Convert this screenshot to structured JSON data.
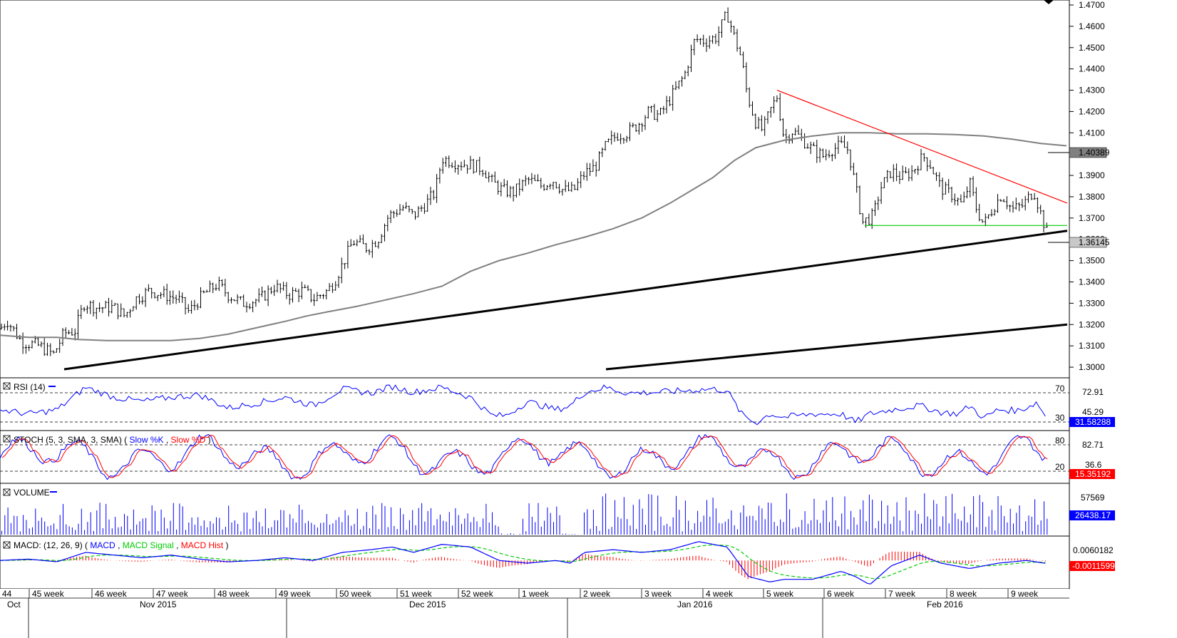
{
  "chart_data": [
    {
      "type": "candlestick",
      "panel": "price",
      "ylim": [
        1.295,
        1.471
      ],
      "y_ticks": [
        "1.4700",
        "1.4600",
        "1.4500",
        "1.4400",
        "1.4300",
        "1.4200",
        "1.4100",
        "1.4000",
        "1.3900",
        "1.3800",
        "1.3700",
        "1.3600",
        "1.3500",
        "1.3400",
        "1.3300",
        "1.3200",
        "1.3100",
        "1.3000"
      ],
      "bars": 344,
      "last_value": "1.36145",
      "ma_value": "1.40389",
      "ma_path": [
        [
          0,
          1.315
        ],
        [
          40,
          1.314
        ],
        [
          80,
          1.314
        ],
        [
          110,
          1.313
        ],
        [
          150,
          1.3125
        ],
        [
          190,
          1.3125
        ],
        [
          240,
          1.3125
        ],
        [
          280,
          1.3135
        ],
        [
          320,
          1.3155
        ],
        [
          360,
          1.3185
        ],
        [
          400,
          1.3215
        ],
        [
          430,
          1.324
        ],
        [
          460,
          1.326
        ],
        [
          500,
          1.3285
        ],
        [
          540,
          1.3315
        ],
        [
          580,
          1.3345
        ],
        [
          620,
          1.338
        ],
        [
          660,
          1.345
        ],
        [
          700,
          1.35
        ],
        [
          740,
          1.3535
        ],
        [
          780,
          1.3575
        ],
        [
          820,
          1.361
        ],
        [
          860,
          1.365
        ],
        [
          900,
          1.37
        ],
        [
          940,
          1.377
        ],
        [
          970,
          1.383
        ],
        [
          1000,
          1.389
        ],
        [
          1030,
          1.397
        ],
        [
          1060,
          1.403
        ],
        [
          1100,
          1.4065
        ],
        [
          1140,
          1.4085
        ],
        [
          1180,
          1.41
        ],
        [
          1220,
          1.41
        ],
        [
          1260,
          1.4095
        ],
        [
          1300,
          1.4095
        ],
        [
          1340,
          1.4092
        ],
        [
          1380,
          1.4085
        ],
        [
          1420,
          1.407
        ],
        [
          1460,
          1.405
        ],
        [
          1496,
          1.4039
        ]
      ],
      "lines": {
        "red_trend": [
          [
            1090,
            1.43
          ],
          [
            1497,
            1.377
          ]
        ],
        "green_support": [
          [
            1213,
            1.3665
          ],
          [
            1497,
            1.3665
          ]
        ],
        "black_support_1": [
          [
            90,
            1.299
          ],
          [
            1497,
            1.364
          ]
        ],
        "black_support_2": [
          [
            850,
            1.299
          ],
          [
            1497,
            1.32
          ]
        ]
      },
      "anchors": [
        [
          0,
          1.318
        ],
        [
          10,
          1.322
        ],
        [
          30,
          1.312
        ],
        [
          55,
          1.31
        ],
        [
          75,
          1.306
        ],
        [
          90,
          1.316
        ],
        [
          105,
          1.317
        ],
        [
          118,
          1.33
        ],
        [
          135,
          1.328
        ],
        [
          160,
          1.328
        ],
        [
          175,
          1.324
        ],
        [
          190,
          1.332
        ],
        [
          210,
          1.336
        ],
        [
          230,
          1.334
        ],
        [
          250,
          1.332
        ],
        [
          265,
          1.326
        ],
        [
          285,
          1.334
        ],
        [
          305,
          1.339
        ],
        [
          320,
          1.334
        ],
        [
          340,
          1.33
        ],
        [
          365,
          1.332
        ],
        [
          385,
          1.338
        ],
        [
          405,
          1.334
        ],
        [
          425,
          1.336
        ],
        [
          440,
          1.332
        ],
        [
          460,
          1.336
        ],
        [
          470,
          1.341
        ],
        [
          480,
          1.348
        ],
        [
          495,
          1.359
        ],
        [
          515,
          1.356
        ],
        [
          530,
          1.36
        ],
        [
          545,
          1.371
        ],
        [
          565,
          1.375
        ],
        [
          580,
          1.371
        ],
        [
          598,
          1.377
        ],
        [
          610,
          1.382
        ],
        [
          620,
          1.398
        ],
        [
          640,
          1.396
        ],
        [
          660,
          1.395
        ],
        [
          678,
          1.393
        ],
        [
          690,
          1.387
        ],
        [
          705,
          1.383
        ],
        [
          720,
          1.382
        ],
        [
          740,
          1.388
        ],
        [
          760,
          1.385
        ],
        [
          775,
          1.388
        ],
        [
          790,
          1.383
        ],
        [
          805,
          1.383
        ],
        [
          820,
          1.391
        ],
        [
          835,
          1.394
        ],
        [
          850,
          1.404
        ],
        [
          865,
          1.409
        ],
        [
          880,
          1.41
        ],
        [
          895,
          1.414
        ],
        [
          910,
          1.42
        ],
        [
          925,
          1.418
        ],
        [
          940,
          1.426
        ],
        [
          960,
          1.437
        ],
        [
          975,
          1.454
        ],
        [
          990,
          1.453
        ],
        [
          1005,
          1.455
        ],
        [
          1020,
          1.466
        ],
        [
          1030,
          1.455
        ],
        [
          1040,
          1.445
        ],
        [
          1048,
          1.428
        ],
        [
          1060,
          1.415
        ],
        [
          1070,
          1.411
        ],
        [
          1080,
          1.42
        ],
        [
          1090,
          1.427
        ],
        [
          1100,
          1.407
        ],
        [
          1112,
          1.411
        ],
        [
          1125,
          1.407
        ],
        [
          1140,
          1.402
        ],
        [
          1155,
          1.399
        ],
        [
          1165,
          1.402
        ],
        [
          1180,
          1.404
        ],
        [
          1190,
          1.402
        ],
        [
          1198,
          1.388
        ],
        [
          1210,
          1.368
        ],
        [
          1225,
          1.371
        ],
        [
          1235,
          1.384
        ],
        [
          1250,
          1.392
        ],
        [
          1265,
          1.389
        ],
        [
          1280,
          1.392
        ],
        [
          1295,
          1.399
        ],
        [
          1305,
          1.395
        ],
        [
          1320,
          1.384
        ],
        [
          1335,
          1.381
        ],
        [
          1350,
          1.376
        ],
        [
          1360,
          1.387
        ],
        [
          1370,
          1.374
        ],
        [
          1380,
          1.367
        ],
        [
          1395,
          1.376
        ],
        [
          1405,
          1.381
        ],
        [
          1420,
          1.374
        ],
        [
          1435,
          1.376
        ],
        [
          1450,
          1.383
        ],
        [
          1460,
          1.372
        ],
        [
          1470,
          1.3615
        ]
      ]
    },
    {
      "type": "line",
      "panel": "rsi",
      "title": "RSI (14)",
      "ylim": [
        20,
        80
      ],
      "levels": [
        70,
        30
      ],
      "level_labels": [
        "70",
        "30"
      ],
      "scale_labels": [
        "72.91",
        "45.29"
      ],
      "last_value": "31.58288",
      "series": [
        {
          "name": "RSI",
          "color": "#0000ff",
          "anchors": [
            [
              0,
              45
            ],
            [
              40,
              40
            ],
            [
              80,
              45
            ],
            [
              120,
              72
            ],
            [
              160,
              60
            ],
            [
              200,
              55
            ],
            [
              240,
              60
            ],
            [
              280,
              63
            ],
            [
              320,
              47
            ],
            [
              360,
              53
            ],
            [
              400,
              60
            ],
            [
              440,
              50
            ],
            [
              480,
              70
            ],
            [
              520,
              65
            ],
            [
              550,
              73
            ],
            [
              580,
              66
            ],
            [
              620,
              72
            ],
            [
              660,
              60
            ],
            [
              690,
              38
            ],
            [
              710,
              38
            ],
            [
              740,
              55
            ],
            [
              780,
              45
            ],
            [
              800,
              50
            ],
            [
              820,
              66
            ],
            [
              850,
              72
            ],
            [
              880,
              65
            ],
            [
              920,
              66
            ],
            [
              960,
              68
            ],
            [
              1000,
              70
            ],
            [
              1020,
              68
            ],
            [
              1040,
              40
            ],
            [
              1060,
              29
            ],
            [
              1080,
              40
            ],
            [
              1100,
              36
            ],
            [
              1140,
              40
            ],
            [
              1180,
              40
            ],
            [
              1200,
              30
            ],
            [
              1220,
              40
            ],
            [
              1250,
              45
            ],
            [
              1290,
              50
            ],
            [
              1320,
              42
            ],
            [
              1345,
              40
            ],
            [
              1360,
              50
            ],
            [
              1380,
              35
            ],
            [
              1400,
              45
            ],
            [
              1430,
              44
            ],
            [
              1455,
              54
            ],
            [
              1470,
              31.6
            ]
          ]
        }
      ]
    },
    {
      "type": "line",
      "panel": "stochastic",
      "title": "STOCH (5, 3, SMA, 3, SMA)",
      "ylim": [
        0,
        100
      ],
      "levels": [
        80,
        20
      ],
      "level_labels": [
        "80",
        "20"
      ],
      "scale_labels": [
        "82.71",
        "36.6"
      ],
      "last_value": "15.35192",
      "series": [
        {
          "name": "Slow %K",
          "color": "#0000ff",
          "period_px": 42
        },
        {
          "name": "Slow %D",
          "color": "#ff0000",
          "period_px": 42
        }
      ]
    },
    {
      "type": "bar",
      "panel": "volume",
      "title": "VOLUME",
      "scale_labels": [
        "57569"
      ],
      "last_value": "26438.17",
      "ymax": 70000,
      "series": [
        {
          "name": "Volume",
          "color": "#0000ff"
        }
      ]
    },
    {
      "type": "line",
      "panel": "macd",
      "title": "MACD: (12, 26, 9)",
      "ylim": [
        -0.01,
        0.008
      ],
      "scale_labels": [
        "0.0060182"
      ],
      "last_value": "-0.0011599",
      "series": [
        {
          "name": "MACD",
          "color": "#0000ff",
          "anchors": [
            [
              0,
              0.0
            ],
            [
              40,
              0.0005
            ],
            [
              80,
              -0.0005
            ],
            [
              120,
              0.003
            ],
            [
              160,
              0.002
            ],
            [
              200,
              0.001
            ],
            [
              240,
              0.002
            ],
            [
              280,
              0.0005
            ],
            [
              320,
              -0.0005
            ],
            [
              360,
              0.0
            ],
            [
              400,
              0.001
            ],
            [
              440,
              0.0
            ],
            [
              480,
              0.003
            ],
            [
              520,
              0.004
            ],
            [
              550,
              0.005
            ],
            [
              580,
              0.003
            ],
            [
              620,
              0.006
            ],
            [
              660,
              0.005
            ],
            [
              700,
              0.0
            ],
            [
              740,
              -0.001
            ],
            [
              780,
              0.0
            ],
            [
              800,
              -0.001
            ],
            [
              820,
              0.003
            ],
            [
              860,
              0.004
            ],
            [
              900,
              0.003
            ],
            [
              940,
              0.004
            ],
            [
              980,
              0.007
            ],
            [
              1020,
              0.005
            ],
            [
              1050,
              -0.006
            ],
            [
              1080,
              -0.008
            ],
            [
              1100,
              -0.007
            ],
            [
              1140,
              -0.007
            ],
            [
              1180,
              -0.004
            ],
            [
              1200,
              -0.006
            ],
            [
              1220,
              -0.009
            ],
            [
              1250,
              -0.002
            ],
            [
              1290,
              0.002
            ],
            [
              1320,
              -0.001
            ],
            [
              1360,
              -0.003
            ],
            [
              1400,
              -0.001
            ],
            [
              1440,
              0.0
            ],
            [
              1470,
              -0.0012
            ]
          ]
        },
        {
          "name": "MACD Signal",
          "color": "#00cc00"
        },
        {
          "name": "MACD Hist",
          "color": "#ff0000"
        }
      ]
    }
  ],
  "x_axis": {
    "week_labels": [
      {
        "text": "44",
        "x": 3
      },
      {
        "text": "45 week",
        "x": 45
      },
      {
        "text": "46 week",
        "x": 133
      },
      {
        "text": "47 week",
        "x": 219
      },
      {
        "text": "48 week",
        "x": 305
      },
      {
        "text": "49 week",
        "x": 391
      },
      {
        "text": "50 week",
        "x": 476
      },
      {
        "text": "51 week",
        "x": 561
      },
      {
        "text": "52 week",
        "x": 647
      },
      {
        "text": "1 week",
        "x": 732
      },
      {
        "text": "2 week",
        "x": 818
      },
      {
        "text": "3 week",
        "x": 904
      },
      {
        "text": "4 week",
        "x": 990
      },
      {
        "text": "5 week",
        "x": 1075
      },
      {
        "text": "6 week",
        "x": 1160
      },
      {
        "text": "7 week",
        "x": 1246
      },
      {
        "text": "8 week",
        "x": 1332
      },
      {
        "text": "9 week",
        "x": 1418
      }
    ],
    "month_labels": [
      {
        "text": "Oct",
        "x": 10
      },
      {
        "text": "Nov 2015",
        "x": 196
      },
      {
        "text": "Dec 2015",
        "x": 574
      },
      {
        "text": "Jan 2016",
        "x": 950
      },
      {
        "text": "Feb 2016",
        "x": 1300
      }
    ],
    "month_separators": [
      40,
      402,
      796,
      1154
    ]
  }
}
